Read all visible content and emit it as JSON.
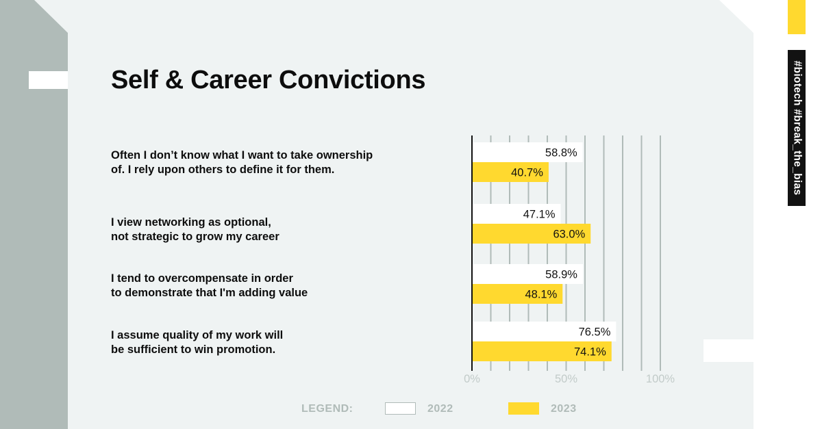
{
  "title": "Self & Career Convictions",
  "hashtags": "#biotech #break_the_bias",
  "colors": {
    "bar_2022": "#ffffff",
    "bar_2023": "#ffd92f",
    "gridline": "#b0bbb8",
    "axis": "#111111",
    "tick_text": "#c2cbc9",
    "accent_yellow": "#ffd92f",
    "hashtag_bg": "#121212"
  },
  "legend": {
    "label": "LEGEND:",
    "items": [
      {
        "name": "2022",
        "color": "#ffffff"
      },
      {
        "name": "2023",
        "color": "#ffd92f"
      }
    ]
  },
  "chart_data": {
    "type": "bar",
    "orientation": "horizontal",
    "title": "Self & Career Convictions",
    "categories": [
      "Often I don’t know what I want to take ownership\nof. I rely upon others to define it for them.",
      "I view networking as optional,\nnot strategic to grow my career",
      "I tend to overcompensate in order\nto demonstrate that I'm adding value",
      "I assume quality of my work will\nbe sufficient to win promotion."
    ],
    "series": [
      {
        "name": "2022",
        "values": [
          58.8,
          47.1,
          58.9,
          76.5
        ],
        "labels": [
          "58.8%",
          "47.1%",
          "58.9%",
          "76.5%"
        ]
      },
      {
        "name": "2023",
        "values": [
          40.7,
          63.0,
          48.1,
          74.1
        ],
        "labels": [
          "40.7%",
          "63.0%",
          "48.1%",
          "74.1%"
        ]
      }
    ],
    "xlim": [
      0,
      100
    ],
    "xticks": [
      0,
      50,
      100
    ],
    "xtick_labels": [
      "0%",
      "50%",
      "100%"
    ],
    "grid": true,
    "legend_position": "bottom"
  }
}
